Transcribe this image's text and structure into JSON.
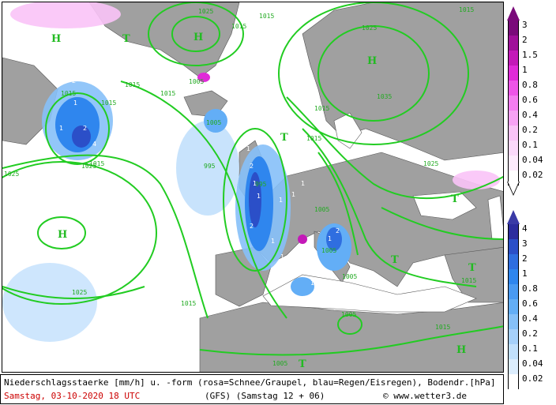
{
  "map": {
    "pressure_systems": [
      {
        "label": "H",
        "kind": "high"
      },
      {
        "label": "H",
        "kind": "high"
      },
      {
        "label": "H",
        "kind": "high"
      },
      {
        "label": "H",
        "kind": "high"
      },
      {
        "label": "H",
        "kind": "high"
      },
      {
        "label": "T",
        "kind": "low"
      },
      {
        "label": "T",
        "kind": "low"
      },
      {
        "label": "T",
        "kind": "low"
      },
      {
        "label": "T",
        "kind": "low"
      },
      {
        "label": "T",
        "kind": "low"
      },
      {
        "label": "T",
        "kind": "low"
      }
    ],
    "isobar_labels": [
      "1025",
      "1015",
      "1015",
      "1015",
      "1015",
      "1015",
      "1005",
      "1015",
      "1015",
      "1005",
      "995",
      "995",
      "1015",
      "1005",
      "1015",
      "1025",
      "1035",
      "1015",
      "1025",
      "1005",
      "1005",
      "1005",
      "1015",
      "1015",
      "1025",
      "1015",
      "1025",
      "1025",
      "1005"
    ],
    "precip_values": [
      "2",
      "1",
      "1",
      "2",
      "4",
      "1",
      "1",
      "2",
      "1",
      "1",
      "1",
      "2",
      "1",
      "1",
      "2",
      "1",
      "1",
      "1",
      "1"
    ]
  },
  "legend_snow": {
    "labels": [
      "3",
      "2",
      "1.5",
      "1",
      "0.8",
      "0.6",
      "0.4",
      "0.2",
      "0.1",
      "0.04",
      "0.02"
    ],
    "colors": [
      "#7a0a7a",
      "#a0109a",
      "#c419b8",
      "#e02ad8",
      "#ee55e8",
      "#f47df0",
      "#f7a2f4",
      "#f9c3f7",
      "#fbd9fa",
      "#fdeafc",
      "#ffffff"
    ]
  },
  "legend_rain": {
    "labels": [
      "4",
      "3",
      "2",
      "1",
      "0.8",
      "0.6",
      "0.4",
      "0.2",
      "0.1",
      "0.04",
      "0.02"
    ],
    "colors": [
      "#2c2c9e",
      "#2b4fc8",
      "#2f6ee0",
      "#2f86ee",
      "#4a9af2",
      "#63aef6",
      "#86c0f8",
      "#a6d0fa",
      "#c2e0fc",
      "#dcedfd",
      "#ffffff"
    ]
  },
  "footer": {
    "line1": "Niederschlagsstaerke [mm/h] u. -form (rosa=Schnee/Graupel, blau=Regen/Eisregen), Bodendr.[hPa]",
    "date": "Samstag, 03-10-2020  18 UTC",
    "model": "(GFS)   (Samstag 12 + 06)",
    "credit": "© www.wetter3.de"
  },
  "colors": {
    "land": "#a0a0a0",
    "sea": "#ffffff",
    "isobar": "#22cc22",
    "border": "#000000"
  }
}
